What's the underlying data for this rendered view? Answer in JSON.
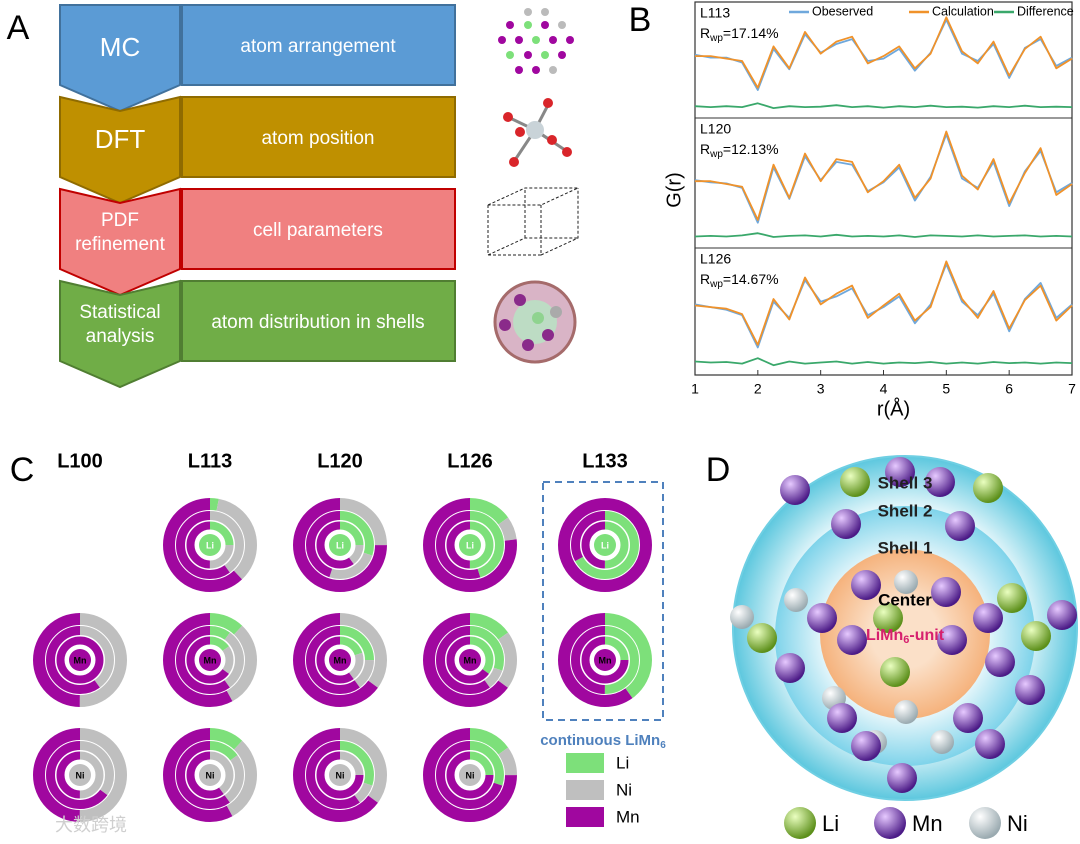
{
  "panel_letters": [
    "A",
    "B",
    "C",
    "D"
  ],
  "panel_a": {
    "rows": [
      {
        "left": [
          "MC"
        ],
        "right": "atom arrangement",
        "color": "#5b9bd5",
        "dark": "#41719c"
      },
      {
        "left": [
          "DFT"
        ],
        "right": "atom position",
        "color": "#bf9000",
        "dark": "#8f6b00"
      },
      {
        "left": [
          "PDF",
          "refinement"
        ],
        "right": "cell parameters",
        "color": "#f08080",
        "dark": "#c00000"
      },
      {
        "left": [
          "Statistical",
          "analysis"
        ],
        "right": "atom distribution in shells",
        "color": "#70ad47",
        "dark": "#507e32"
      }
    ]
  },
  "panel_b": {
    "ylabel": "G(r)",
    "xlabel": "r(Å)",
    "xlim": [
      1,
      7
    ],
    "xticks": [
      1,
      2,
      3,
      4,
      5,
      6,
      7
    ],
    "ylim": [
      -1,
      1.1
    ],
    "legend": [
      {
        "name": "Obeserved",
        "color": "#6fa8dc"
      },
      {
        "name": "Calculation",
        "color": "#f0922a"
      },
      {
        "name": "Difference",
        "color": "#3aa86b"
      }
    ],
    "x": [
      1,
      1.25,
      1.5,
      1.75,
      2,
      2.25,
      2.5,
      2.75,
      3,
      3.25,
      3.5,
      3.75,
      4,
      4.25,
      4.5,
      4.75,
      5,
      5.25,
      5.5,
      5.75,
      6,
      6.25,
      6.5,
      6.75,
      7
    ],
    "panels": [
      {
        "label": "L113",
        "rwp_symbol": "R",
        "rwp_sub": "wp",
        "rwp_value": "=17.14%",
        "observed": [
          0.18,
          0.12,
          0.12,
          0.02,
          -0.55,
          0.3,
          -0.12,
          0.6,
          0.22,
          0.4,
          0.5,
          0.05,
          0.1,
          0.3,
          -0.15,
          0.22,
          0.9,
          0.2,
          0.05,
          0.4,
          -0.3,
          0.32,
          0.5,
          -0.05,
          0.12
        ],
        "calculation": [
          0.15,
          0.15,
          0.1,
          0.05,
          -0.5,
          0.35,
          -0.1,
          0.65,
          0.2,
          0.45,
          0.55,
          0.0,
          0.15,
          0.35,
          -0.1,
          0.2,
          0.95,
          0.25,
          0.0,
          0.45,
          -0.25,
          0.3,
          0.55,
          -0.1,
          0.1
        ],
        "difference": [
          -0.88,
          -0.9,
          -0.88,
          -0.9,
          -0.82,
          -0.92,
          -0.88,
          -0.9,
          -0.89,
          -0.86,
          -0.9,
          -0.88,
          -0.91,
          -0.88,
          -0.9,
          -0.87,
          -0.9,
          -0.89,
          -0.91,
          -0.88,
          -0.9,
          -0.87,
          -0.9,
          -0.89,
          -0.9
        ]
      },
      {
        "label": "L120",
        "rwp_symbol": "R",
        "rwp_sub": "wp",
        "rwp_value": "=12.13%",
        "observed": [
          0.12,
          0.08,
          0.06,
          -0.02,
          -0.65,
          0.35,
          -0.22,
          0.55,
          0.12,
          0.45,
          0.4,
          -0.08,
          0.08,
          0.35,
          -0.25,
          0.18,
          0.95,
          0.15,
          -0.02,
          0.45,
          -0.35,
          0.28,
          0.65,
          -0.1,
          0.07
        ],
        "calculation": [
          0.1,
          0.1,
          0.05,
          0.0,
          -0.6,
          0.4,
          -0.2,
          0.6,
          0.1,
          0.5,
          0.45,
          -0.1,
          0.1,
          0.4,
          -0.2,
          0.15,
          1.0,
          0.2,
          -0.05,
          0.5,
          -0.3,
          0.25,
          0.7,
          -0.15,
          0.05
        ],
        "difference": [
          -0.9,
          -0.89,
          -0.9,
          -0.88,
          -0.84,
          -0.91,
          -0.89,
          -0.88,
          -0.9,
          -0.87,
          -0.9,
          -0.89,
          -0.9,
          -0.88,
          -0.91,
          -0.88,
          -0.89,
          -0.9,
          -0.88,
          -0.9,
          -0.89,
          -0.88,
          -0.9,
          -0.89,
          -0.9
        ]
      },
      {
        "label": "L126",
        "rwp_symbol": "R",
        "rwp_sub": "wp",
        "rwp_value": "=14.67%",
        "observed": [
          0.2,
          0.15,
          0.1,
          0.0,
          -0.6,
          0.25,
          -0.05,
          0.65,
          0.25,
          0.35,
          0.5,
          0.0,
          0.15,
          0.35,
          -0.15,
          0.2,
          0.95,
          0.25,
          0.0,
          0.4,
          -0.3,
          0.3,
          0.6,
          -0.05,
          0.2
        ],
        "calculation": [
          0.18,
          0.15,
          0.12,
          0.02,
          -0.55,
          0.3,
          -0.08,
          0.7,
          0.2,
          0.4,
          0.55,
          -0.05,
          0.18,
          0.4,
          -0.1,
          0.15,
          1.0,
          0.3,
          -0.05,
          0.45,
          -0.25,
          0.28,
          0.55,
          -0.1,
          0.18
        ],
        "difference": [
          -0.86,
          -0.88,
          -0.87,
          -0.9,
          -0.8,
          -0.93,
          -0.86,
          -0.9,
          -0.88,
          -0.86,
          -0.9,
          -0.87,
          -0.9,
          -0.88,
          -0.89,
          -0.87,
          -0.9,
          -0.88,
          -0.9,
          -0.87,
          -0.89,
          -0.88,
          -0.9,
          -0.88,
          -0.89
        ]
      }
    ]
  },
  "panel_c": {
    "columns": [
      "L100",
      "L113",
      "L120",
      "L126",
      "L133"
    ],
    "elements": [
      {
        "name": "Li",
        "color": "#7de07a"
      },
      {
        "name": "Ni",
        "color": "#bfbfbf"
      },
      {
        "name": "Mn",
        "color": "#a0079f"
      }
    ],
    "rows": [
      {
        "center": "Li",
        "donuts": [
          [
            [
              25,
              25,
              50
            ],
            [
              0,
              40,
              60
            ],
            [
              3,
              35,
              62
            ]
          ],
          [
            [
              25,
              15,
              60
            ],
            [
              30,
              25,
              45
            ],
            [
              0,
              25,
              75
            ]
          ],
          [
            [
              50,
              0,
              50
            ],
            [
              45,
              0,
              55
            ],
            [
              15,
              8,
              77
            ]
          ],
          [
            [
              50,
              0,
              50
            ],
            [
              67,
              0,
              33
            ],
            [
              0,
              0,
              100
            ]
          ]
        ]
      },
      {
        "center": "Mn",
        "donuts": [
          [
            [
              0,
              0,
              100
            ],
            [
              0,
              40,
              60
            ],
            [
              0,
              50,
              50
            ]
          ],
          [
            [
              15,
              20,
              65
            ],
            [
              10,
              30,
              60
            ],
            [
              12,
              30,
              58
            ]
          ],
          [
            [
              20,
              20,
              60
            ],
            [
              25,
              15,
              60
            ],
            [
              0,
              35,
              65
            ]
          ],
          [
            [
              35,
              0,
              65
            ],
            [
              30,
              10,
              60
            ],
            [
              15,
              20,
              65
            ]
          ],
          [
            [
              25,
              0,
              75
            ],
            [
              50,
              0,
              50
            ],
            [
              40,
              0,
              60
            ]
          ]
        ]
      },
      {
        "center": "Ni",
        "donuts": [
          [
            [
              0,
              50,
              50
            ],
            [
              0,
              35,
              65
            ],
            [
              0,
              50,
              50
            ]
          ],
          [
            [
              0,
              40,
              60
            ],
            [
              15,
              25,
              60
            ],
            [
              12,
              30,
              58
            ]
          ],
          [
            [
              0,
              25,
              75
            ],
            [
              30,
              10,
              60
            ],
            [
              0,
              35,
              65
            ]
          ],
          [
            [
              25,
              0,
              75
            ],
            [
              30,
              0,
              70
            ],
            [
              15,
              10,
              75
            ]
          ]
        ]
      }
    ],
    "highlight_label": [
      "continuous LiMn",
      "6"
    ]
  },
  "panel_d": {
    "shells": [
      "Shell 3",
      "Shell 2",
      "Shell 1"
    ],
    "center": "Center",
    "unit_label": [
      "LiMn",
      "6",
      "-unit"
    ],
    "legend": [
      {
        "name": "Li",
        "color": "#7cb82f"
      },
      {
        "name": "Mn",
        "color": "#7a3bb8"
      },
      {
        "name": "Ni",
        "color": "#d6e2e6"
      }
    ]
  },
  "watermark": "大数跨境"
}
